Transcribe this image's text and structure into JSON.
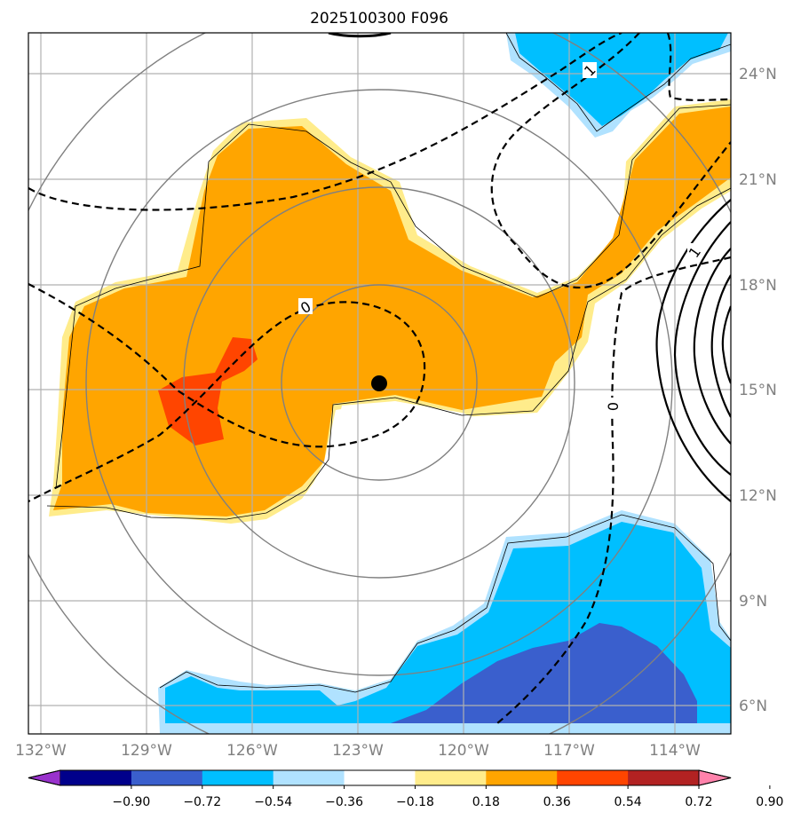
{
  "title": "2025100300 F096",
  "lon_labels": [
    "132°W",
    "129°W",
    "126°W",
    "123°W",
    "120°W",
    "117°W",
    "114°W"
  ],
  "lat_labels": [
    "24°N",
    "21°N",
    "18°N",
    "15°N",
    "12°N",
    "9°N",
    "6°N"
  ],
  "contour_labels": [
    "1",
    "0",
    "0",
    "1"
  ],
  "colorbar": {
    "tick_labels": [
      "−0.90",
      "−0.72",
      "−0.54",
      "−0.36",
      "−0.18",
      "0.18",
      "0.36",
      "0.54",
      "0.72",
      "0.90"
    ],
    "colors": [
      "#9932cc",
      "#00008b",
      "#3a5fcd",
      "#00bfff",
      "#b0e2ff",
      "#ffffff",
      "#ffec8b",
      "#ffa500",
      "#ff4500",
      "#b22222",
      "#ff82ab"
    ]
  },
  "storm_center": {
    "lon": -122.4,
    "lat": 15.2
  }
}
